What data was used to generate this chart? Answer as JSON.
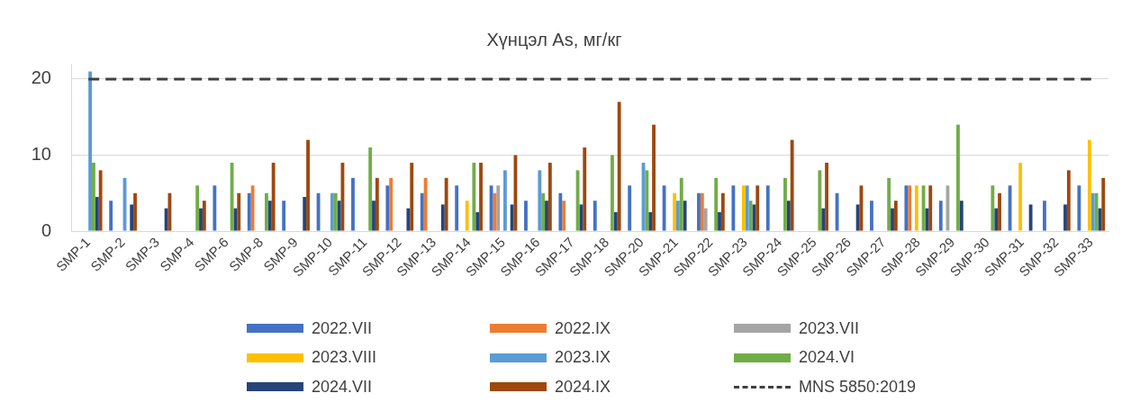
{
  "chart_data": {
    "type": "bar",
    "title": "Хүнцэл As, мг/кг",
    "categories": [
      "SMP-1",
      "SMP-2",
      "SMP-3",
      "SMP-4",
      "SMP-6",
      "SMP-8",
      "SMP-9",
      "SMP-10",
      "SMP-11",
      "SMP-12",
      "SMP-13",
      "SMP-14",
      "SMP-15",
      "SMP-16",
      "SMP-17",
      "SMP-18",
      "SMP-20",
      "SMP-21",
      "SMP-22",
      "SMP-23",
      "SMP-24",
      "SMP-25",
      "SMP-26",
      "SMP-27",
      "SMP-28",
      "SMP-29",
      "SMP-30",
      "SMP-31",
      "SMP-32",
      "SMP-33"
    ],
    "series": [
      {
        "name": "2022.VII",
        "color": "#4472c4",
        "values": [
          null,
          4,
          null,
          null,
          6,
          5,
          4,
          5,
          7,
          6,
          5,
          6,
          6,
          4,
          5,
          4,
          6,
          6,
          5,
          6,
          6,
          null,
          5,
          4,
          6,
          4,
          null,
          6,
          4,
          6
        ]
      },
      {
        "name": "2022.IX",
        "color": "#ed7d31",
        "values": [
          null,
          null,
          null,
          null,
          null,
          6,
          null,
          null,
          null,
          7,
          7,
          null,
          5,
          null,
          4,
          null,
          null,
          null,
          5,
          null,
          null,
          null,
          null,
          null,
          6,
          null,
          null,
          null,
          null,
          null
        ]
      },
      {
        "name": "2023.VII",
        "color": "#a5a5a5",
        "values": [
          null,
          null,
          null,
          null,
          null,
          null,
          null,
          null,
          null,
          null,
          null,
          null,
          6,
          null,
          null,
          null,
          null,
          null,
          3,
          null,
          null,
          null,
          null,
          null,
          null,
          6,
          null,
          null,
          null,
          null
        ]
      },
      {
        "name": "2023.VIII",
        "color": "#ffc000",
        "values": [
          null,
          null,
          null,
          null,
          null,
          null,
          null,
          null,
          null,
          null,
          null,
          4,
          null,
          null,
          null,
          null,
          null,
          5,
          null,
          6,
          null,
          null,
          null,
          null,
          6,
          null,
          null,
          9,
          null,
          12
        ]
      },
      {
        "name": "2023.IX",
        "color": "#5b9bd5",
        "values": [
          21,
          7,
          null,
          null,
          null,
          null,
          null,
          5,
          null,
          null,
          null,
          null,
          8,
          8,
          null,
          null,
          9,
          4,
          null,
          6,
          null,
          null,
          null,
          null,
          null,
          null,
          null,
          null,
          null,
          5
        ]
      },
      {
        "name": "2024.VI",
        "color": "#70ad47",
        "values": [
          9,
          null,
          null,
          6,
          9,
          5,
          null,
          5,
          11,
          null,
          null,
          9,
          null,
          5,
          8,
          10,
          8,
          7,
          7,
          4,
          7,
          8,
          null,
          7,
          6,
          14,
          6,
          null,
          null,
          5
        ]
      },
      {
        "name": "2024.VII",
        "color": "#264478",
        "values": [
          4.5,
          3.5,
          3,
          3,
          3,
          4,
          4.5,
          4,
          4,
          3,
          3.5,
          2.5,
          3.5,
          4,
          3.5,
          2.5,
          2.5,
          4,
          2.5,
          3.5,
          4,
          3,
          3.5,
          3,
          3,
          4,
          3,
          3.5,
          3.5,
          3
        ]
      },
      {
        "name": "2024.IX",
        "color": "#9e480e",
        "values": [
          8,
          5,
          5,
          4,
          5,
          9,
          12,
          9,
          7,
          9,
          7,
          9,
          10,
          9,
          11,
          17,
          14,
          null,
          5,
          6,
          12,
          9,
          6,
          4,
          6,
          null,
          5,
          null,
          8,
          7
        ]
      },
      {
        "name": "MNS 5850:2019",
        "type": "line",
        "color": "#404040",
        "line_style": "dashed",
        "marker": "none",
        "values": [
          20,
          20,
          20,
          20,
          20,
          20,
          20,
          20,
          20,
          20,
          20,
          20,
          20,
          20,
          20,
          20,
          20,
          20,
          20,
          20,
          20,
          20,
          20,
          20,
          20,
          20,
          20,
          20,
          20,
          20
        ]
      }
    ],
    "ylim": [
      0,
      22
    ],
    "yticks": [
      0,
      10,
      20
    ],
    "grid": "y",
    "legend": "bottom"
  }
}
